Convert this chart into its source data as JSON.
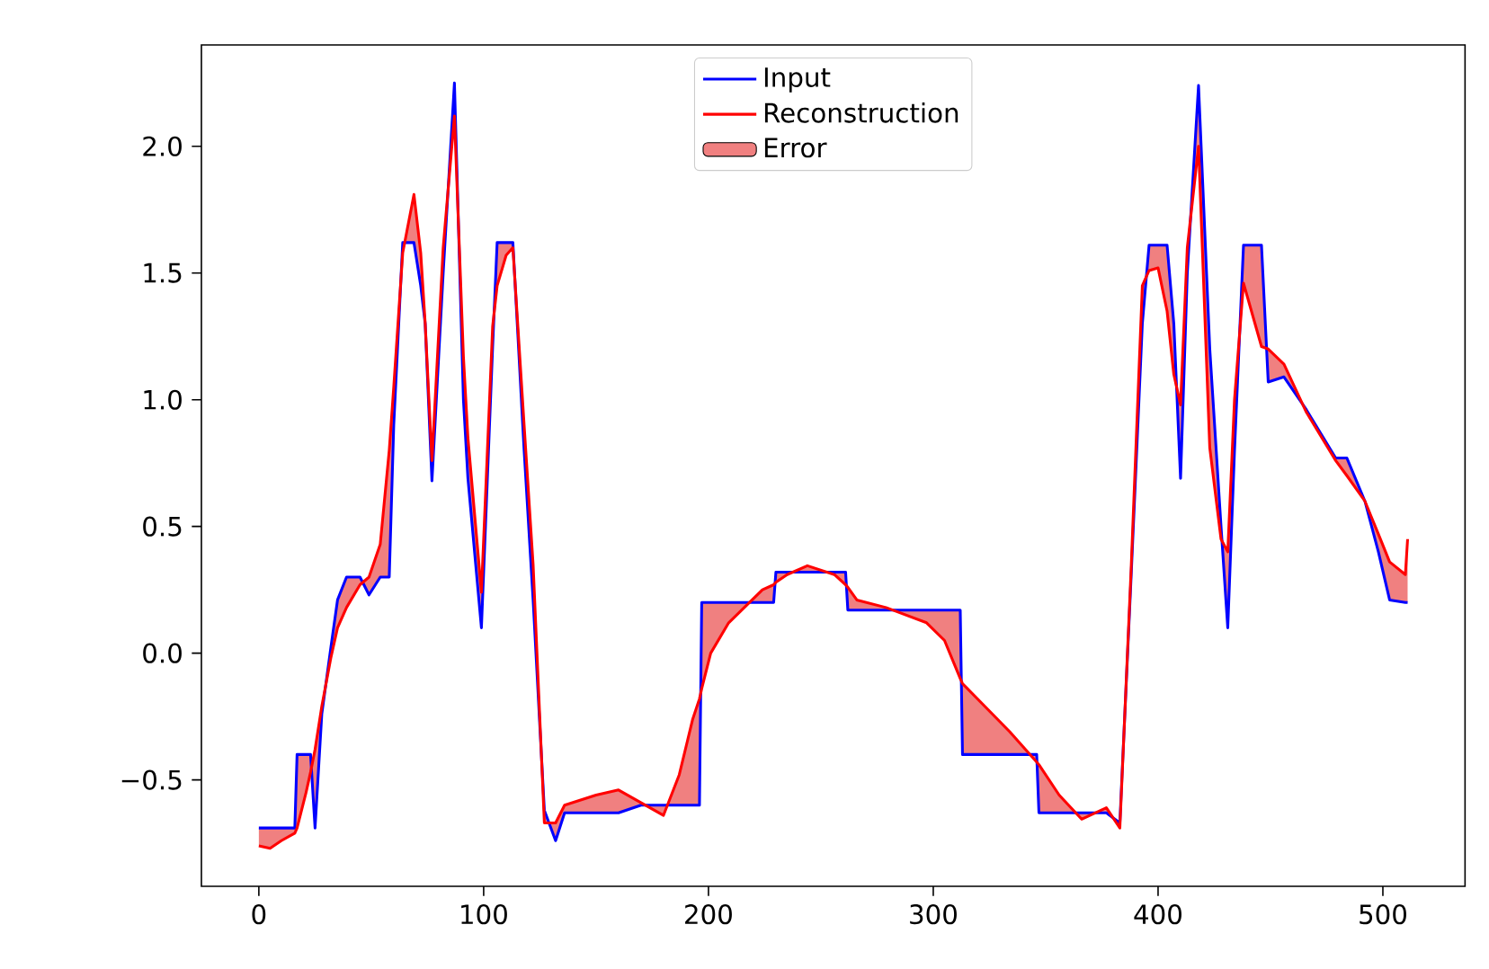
{
  "chart_data": {
    "type": "line",
    "x": [
      0,
      5,
      10,
      16,
      17,
      21,
      23,
      25,
      28,
      32,
      35,
      39,
      45,
      49,
      54,
      58,
      60,
      64,
      69,
      72,
      74,
      77,
      82,
      87,
      91,
      93,
      99,
      104,
      106,
      110,
      113,
      118,
      122,
      127,
      132,
      136,
      150,
      160,
      170,
      180,
      187,
      193,
      196,
      197,
      201,
      209,
      224,
      229,
      230,
      235,
      244,
      256,
      261,
      262,
      266,
      279,
      297,
      305,
      312,
      313,
      334,
      346,
      347,
      356,
      366,
      377,
      383,
      388,
      393,
      396,
      400,
      404,
      407,
      410,
      413,
      418,
      423,
      428,
      431,
      434,
      438,
      446,
      449,
      456,
      466,
      479,
      484,
      492,
      498,
      503,
      510,
      511
    ],
    "series": [
      {
        "name": "Input",
        "color": "#0000ff",
        "values": [
          -0.69,
          -0.69,
          -0.69,
          -0.69,
          -0.4,
          -0.4,
          -0.4,
          -0.69,
          -0.24,
          0.02,
          0.21,
          0.3,
          0.3,
          0.23,
          0.3,
          0.3,
          0.9,
          1.62,
          1.62,
          1.45,
          1.3,
          0.68,
          1.5,
          2.25,
          1.0,
          0.69,
          0.1,
          1.21,
          1.62,
          1.62,
          1.62,
          0.8,
          0.21,
          -0.62,
          -0.74,
          -0.63,
          -0.63,
          -0.63,
          -0.6,
          -0.6,
          -0.6,
          -0.6,
          -0.6,
          0.2,
          0.2,
          0.2,
          0.2,
          0.2,
          0.32,
          0.32,
          0.32,
          0.32,
          0.32,
          0.17,
          0.17,
          0.17,
          0.17,
          0.17,
          0.17,
          -0.4,
          -0.4,
          -0.4,
          -0.63,
          -0.63,
          -0.63,
          -0.63,
          -0.67,
          0.3,
          1.3,
          1.61,
          1.61,
          1.61,
          1.3,
          0.69,
          1.5,
          2.24,
          1.2,
          0.5,
          0.1,
          0.8,
          1.61,
          1.61,
          1.07,
          1.09,
          0.96,
          0.77,
          0.77,
          0.6,
          0.4,
          0.21,
          0.2,
          0.2
        ]
      },
      {
        "name": "Reconstruction",
        "color": "#ff0000",
        "values": [
          -0.76,
          -0.77,
          -0.74,
          -0.71,
          -0.69,
          -0.55,
          -0.47,
          -0.38,
          -0.21,
          -0.02,
          0.1,
          0.18,
          0.27,
          0.3,
          0.43,
          0.8,
          1.05,
          1.58,
          1.81,
          1.58,
          1.3,
          0.76,
          1.6,
          2.12,
          1.17,
          0.85,
          0.24,
          1.29,
          1.45,
          1.57,
          1.6,
          0.9,
          0.35,
          -0.67,
          -0.67,
          -0.6,
          -0.56,
          -0.54,
          -0.59,
          -0.64,
          -0.48,
          -0.26,
          -0.18,
          -0.14,
          0.0,
          0.12,
          0.25,
          0.27,
          0.28,
          0.31,
          0.345,
          0.31,
          0.27,
          0.26,
          0.21,
          0.18,
          0.12,
          0.05,
          -0.1,
          -0.12,
          -0.31,
          -0.43,
          -0.44,
          -0.56,
          -0.655,
          -0.61,
          -0.69,
          0.33,
          1.45,
          1.51,
          1.52,
          1.35,
          1.1,
          0.98,
          1.6,
          2.0,
          0.81,
          0.45,
          0.4,
          1.0,
          1.46,
          1.21,
          1.2,
          1.14,
          0.95,
          0.76,
          0.7,
          0.6,
          0.47,
          0.36,
          0.31,
          0.45
        ]
      },
      {
        "name": "Error",
        "type": "area",
        "color": "#f08080",
        "values": [
          null,
          null,
          null,
          null,
          null,
          null,
          null,
          null,
          null,
          null,
          null,
          null,
          null,
          null,
          null,
          null,
          null,
          null,
          null,
          null,
          null,
          null,
          null,
          null,
          null,
          null,
          null,
          null,
          null,
          null,
          null,
          null,
          null,
          null,
          null,
          null,
          null,
          null,
          null,
          null,
          null,
          null,
          null,
          null,
          null,
          null,
          null,
          null,
          null,
          null,
          null,
          null,
          null,
          null,
          null,
          null,
          null,
          null,
          null,
          null,
          null,
          null,
          null,
          null,
          null,
          null,
          null,
          null,
          null,
          null,
          null,
          null,
          null,
          null,
          null,
          null,
          null,
          null,
          null,
          null,
          null,
          null,
          null,
          null,
          null,
          null,
          null,
          null,
          null,
          null,
          null,
          null
        ],
        "upper": [
          -0.76,
          -0.77,
          -0.74,
          -0.71,
          -0.69,
          -0.55,
          -0.47,
          -0.38,
          -0.21,
          -0.02,
          0.1,
          0.18,
          0.27,
          0.3,
          0.43,
          0.8,
          1.05,
          1.58,
          1.81,
          1.58,
          1.3,
          0.76,
          1.6,
          2.12,
          1.17,
          0.85,
          0.24,
          1.29,
          1.45,
          1.57,
          1.6,
          0.9,
          0.35,
          -0.67,
          -0.67,
          -0.6,
          -0.56,
          -0.54,
          -0.59,
          -0.64,
          -0.48,
          -0.26,
          -0.18,
          -0.14,
          0.0,
          0.12,
          0.25,
          0.27,
          0.28,
          0.31,
          0.345,
          0.31,
          0.27,
          0.26,
          0.21,
          0.18,
          0.12,
          0.05,
          -0.1,
          -0.12,
          -0.31,
          -0.43,
          -0.44,
          -0.56,
          -0.655,
          -0.61,
          -0.69,
          0.33,
          1.45,
          1.51,
          1.52,
          1.35,
          1.1,
          0.98,
          1.6,
          2.0,
          0.81,
          0.45,
          0.4,
          1.0,
          1.46,
          1.21,
          1.2,
          1.14,
          0.95,
          0.76,
          0.7,
          0.6,
          0.47,
          0.36,
          0.31,
          0.45
        ],
        "lower": [
          -0.69,
          -0.69,
          -0.69,
          -0.69,
          -0.4,
          -0.4,
          -0.4,
          -0.69,
          -0.24,
          0.02,
          0.21,
          0.3,
          0.3,
          0.23,
          0.3,
          0.3,
          0.9,
          1.62,
          1.62,
          1.45,
          1.3,
          0.68,
          1.5,
          2.25,
          1.0,
          0.69,
          0.1,
          1.21,
          1.62,
          1.62,
          1.62,
          0.8,
          0.21,
          -0.62,
          -0.74,
          -0.63,
          -0.63,
          -0.63,
          -0.6,
          -0.6,
          -0.6,
          -0.6,
          -0.6,
          0.2,
          0.2,
          0.2,
          0.2,
          0.2,
          0.32,
          0.32,
          0.32,
          0.32,
          0.32,
          0.17,
          0.17,
          0.17,
          0.17,
          0.17,
          0.17,
          -0.4,
          -0.4,
          -0.4,
          -0.63,
          -0.63,
          -0.63,
          -0.63,
          -0.67,
          0.3,
          1.3,
          1.61,
          1.61,
          1.61,
          1.3,
          0.69,
          1.5,
          2.24,
          1.2,
          0.5,
          0.1,
          0.8,
          1.61,
          1.61,
          1.07,
          1.09,
          0.96,
          0.77,
          0.77,
          0.6,
          0.4,
          0.21,
          0.2,
          0.2
        ]
      }
    ],
    "xlim": [
      -25.55,
      536.55
    ],
    "ylim": [
      -0.92,
      2.4
    ],
    "xticks": [
      0,
      100,
      200,
      300,
      400,
      500
    ],
    "yticks": [
      {
        "value": -0.5,
        "label": "−0.5"
      },
      {
        "value": 0,
        "label": "0.0"
      },
      0.5,
      {
        "value": 1,
        "label": "1.0"
      },
      1.5,
      {
        "value": 2,
        "label": "2.0"
      }
    ],
    "legend": "top"
  }
}
